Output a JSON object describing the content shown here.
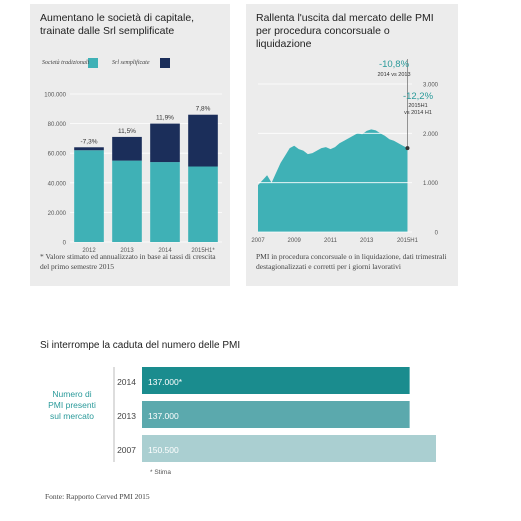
{
  "colors": {
    "panel_bg": "#ececec",
    "teal": "#3fb1b6",
    "navy": "#1b2e5a",
    "bar_2014": "#1a8c8e",
    "bar_2013": "#5ba9ad",
    "bar_2007": "#aacfd1",
    "green_text": "#2a9a9a"
  },
  "left_panel": {
    "title": "Aumentano le società di capitale, trainate dalle Srl semplificate",
    "legend": [
      "Società tradizionali",
      "Srl semplificate"
    ],
    "y_ticks": [
      "100.000",
      "80.000",
      "60.000",
      "40.000",
      "20.000",
      "0"
    ],
    "x_ticks": [
      "2012",
      "2013",
      "2014",
      "2015H1*"
    ],
    "bar_labels": [
      "-7,3%",
      "11,5%",
      "11,9%",
      "7,8%"
    ],
    "note": "* Valore stimato ed annualizzato in base ai tassi di crescita del primo semestre 2015"
  },
  "right_panel": {
    "title": "Rallenta l'uscita dal mercato delle PMI per procedura concorsuale o liquidazione",
    "y_ticks": [
      "3.000",
      "2.000",
      "1.000",
      "0"
    ],
    "x_ticks": [
      "2007",
      "2009",
      "2011",
      "2013",
      "2015H1"
    ],
    "ann1_pct": "-10,8%",
    "ann1_sub": "2014 vs 2013",
    "ann2_pct": "-12,2%",
    "ann2_sub1": "2015H1",
    "ann2_sub2": "vs 2014 H1",
    "note": "PMI in procedura concorsuale o in liquidazione, dati trimestrali destagionalizzati e corretti per i giorni lavorativi"
  },
  "bottom_panel": {
    "title": "Si interrompe la caduta del numero delle PMI",
    "side_label": [
      "Numero di",
      "PMI presenti",
      "sul mercato"
    ],
    "rows": [
      {
        "year": "2014",
        "value_label": "137.000*"
      },
      {
        "year": "2013",
        "value_label": "137.000"
      },
      {
        "year": "2007",
        "value_label": "150.500"
      }
    ],
    "footnote": "* Stima"
  },
  "source": "Fonte: Rapporto Cerved PMI 2015",
  "chart_data": [
    {
      "type": "bar",
      "title": "Aumentano le società di capitale, trainate dalle Srl semplificate",
      "categories": [
        "2012",
        "2013",
        "2014",
        "2015H1*"
      ],
      "series": [
        {
          "name": "Società tradizionali",
          "values": [
            62000,
            55000,
            54000,
            51000
          ]
        },
        {
          "name": "Srl semplificate",
          "values": [
            2000,
            16000,
            26000,
            35000
          ]
        }
      ],
      "stacked": true,
      "data_labels": [
        "-7,3%",
        "11,5%",
        "11,9%",
        "7,8%"
      ],
      "ylim": [
        0,
        100000
      ],
      "xlabel": "",
      "ylabel": ""
    },
    {
      "type": "area",
      "title": "Rallenta l'uscita dal mercato delle PMI per procedura concorsuale o liquidazione",
      "x": [
        2007,
        2007.25,
        2007.5,
        2007.75,
        2008,
        2008.25,
        2008.5,
        2008.75,
        2009,
        2009.25,
        2009.5,
        2009.75,
        2010,
        2010.25,
        2010.5,
        2010.75,
        2011,
        2011.25,
        2011.5,
        2011.75,
        2012,
        2012.25,
        2012.5,
        2012.75,
        2013,
        2013.25,
        2013.5,
        2013.75,
        2014,
        2014.25,
        2014.5,
        2014.75,
        2015,
        2015.25
      ],
      "y": [
        950,
        1050,
        1150,
        1000,
        1200,
        1400,
        1550,
        1700,
        1750,
        1680,
        1650,
        1580,
        1600,
        1650,
        1700,
        1720,
        1680,
        1720,
        1800,
        1850,
        1900,
        1950,
        2000,
        1980,
        2050,
        2080,
        2060,
        2000,
        1950,
        1880,
        1850,
        1800,
        1750,
        1700
      ],
      "ylim": [
        0,
        3000
      ],
      "y_ticks": [
        0,
        1000,
        2000,
        3000
      ],
      "x_ticks": [
        "2007",
        "2009",
        "2011",
        "2013",
        "2015H1"
      ],
      "annotations": [
        "-10,8% 2014 vs 2013",
        "-12,2% 2015H1 vs 2014 H1"
      ]
    },
    {
      "type": "bar",
      "orientation": "horizontal",
      "title": "Si interrompe la caduta del numero delle PMI",
      "categories": [
        "2014",
        "2013",
        "2007"
      ],
      "values": [
        137000,
        137000,
        150500
      ],
      "data_labels": [
        "137.000*",
        "137.000",
        "150.500"
      ]
    }
  ]
}
